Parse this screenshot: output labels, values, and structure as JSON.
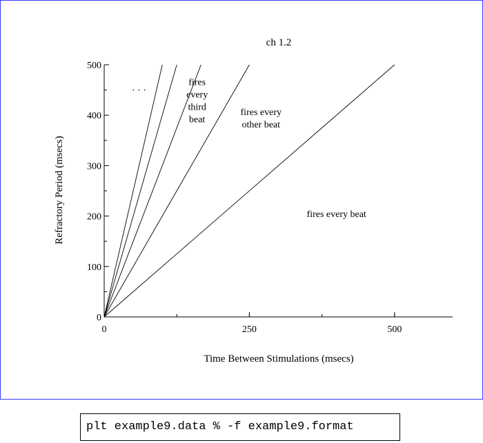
{
  "chart_data": {
    "type": "line",
    "title": "ch 1.2",
    "xlabel": "Time Between Stimulations (msecs)",
    "ylabel": "Refractory Period (msecs)",
    "xlim": [
      0,
      600
    ],
    "ylim": [
      0,
      500
    ],
    "x_ticks": [
      0,
      250,
      500
    ],
    "y_ticks": [
      0,
      100,
      200,
      300,
      400,
      500
    ],
    "grid": false,
    "series": [
      {
        "values": [
          [
            0,
            0
          ],
          [
            500,
            500
          ]
        ]
      },
      {
        "values": [
          [
            0,
            0
          ],
          [
            250,
            500
          ]
        ]
      },
      {
        "values": [
          [
            0,
            0
          ],
          [
            166.7,
            500
          ]
        ]
      },
      {
        "values": [
          [
            0,
            0
          ],
          [
            125,
            500
          ]
        ]
      },
      {
        "values": [
          [
            0,
            0
          ],
          [
            100,
            500
          ]
        ]
      }
    ],
    "annotations": [
      {
        "lines": [
          "fires every beat"
        ],
        "x": 400,
        "y": 198
      },
      {
        "lines": [
          "fires every",
          "other beat"
        ],
        "x": 270,
        "y": 400
      },
      {
        "lines": [
          "fires",
          "every",
          "third",
          "beat"
        ],
        "x": 160,
        "y": 460
      },
      {
        "lines": [
          "· · ·"
        ],
        "x": 60,
        "y": 443
      }
    ]
  },
  "command": "plt example9.data % -f example9.format"
}
